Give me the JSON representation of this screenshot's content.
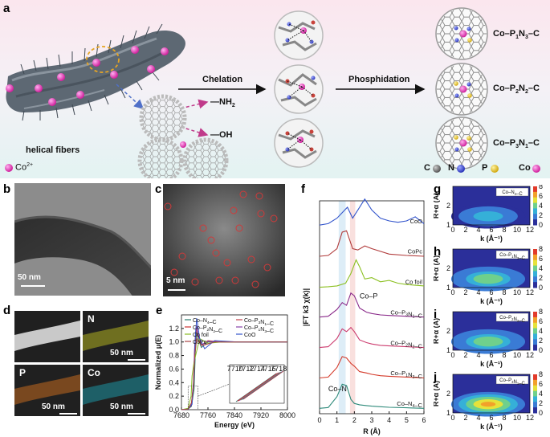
{
  "panel_labels": {
    "a": "a",
    "b": "b",
    "c": "c",
    "d": "d",
    "e": "e",
    "f": "f",
    "g": "g",
    "h": "h",
    "i": "i",
    "j": "j"
  },
  "panel_a": {
    "helical_fibers": "helical fibers",
    "co_legend": "Co",
    "co_charge": "2+",
    "chelation": "Chelation",
    "phosphidation": "Phosphidation",
    "nh2": "—NH",
    "nh2_sub": "2",
    "oh": "—OH",
    "products": [
      {
        "pre": "Co–P",
        "s1": "1",
        "mid": "N",
        "s2": "3",
        "post": "–C"
      },
      {
        "pre": "Co–P",
        "s1": "2",
        "mid": "N",
        "s2": "2",
        "post": "–C"
      },
      {
        "pre": "Co–P",
        "s1": "3",
        "mid": "N",
        "s2": "1",
        "post": "–C"
      }
    ],
    "element_legend": {
      "C": "C",
      "N": "N",
      "P": "P",
      "Co": "Co"
    },
    "colors": {
      "co": "#e23bc8",
      "n": "#3b4fd6",
      "p": "#e8c82a",
      "c": "#777777",
      "o": "#c8433b"
    }
  },
  "panel_b": {
    "scale": "50 nm"
  },
  "panel_c": {
    "scale": "5 nm"
  },
  "panel_d": {
    "tiles": [
      {
        "label": "",
        "scale": ""
      },
      {
        "label": "N",
        "scale": "50 nm"
      },
      {
        "label": "P",
        "scale": "50 nm"
      },
      {
        "label": "Co",
        "scale": "50 nm"
      }
    ]
  },
  "panel_e": {
    "ylabel": "Normalized μ(E)",
    "xlabel": "Energy (eV)",
    "legend": [
      {
        "text": "Co–N4–C",
        "color": "#2a7a6a"
      },
      {
        "text": "Co–P3N1–C",
        "color": "#c0404a"
      },
      {
        "text": "Co–P2N2–C",
        "color": "#cc3333"
      },
      {
        "text": "Co–P1N3–C",
        "color": "#8844aa"
      },
      {
        "text": "Co foil",
        "color": "#88bb22"
      },
      {
        "text": "CoO",
        "color": "#3355cc"
      },
      {
        "text": "CoPc",
        "color": "#aa4444"
      }
    ]
  },
  "panel_f": {
    "ylabel": "|FT k3 χ(k)|",
    "xlabel": "R (Å)",
    "annotations": {
      "cop": "Co–P",
      "con": "Co–N"
    },
    "curves": [
      {
        "name": "CoO",
        "color": "#3355cc"
      },
      {
        "name": "CoPc",
        "color": "#b03a3a"
      },
      {
        "name": "Co foil",
        "color": "#8cc022"
      },
      {
        "name": "Co–P3N1–C",
        "color": "#8a2a8a"
      },
      {
        "name": "Co–P2N2–C",
        "color": "#cc3b6e"
      },
      {
        "name": "Co–P1N3–C",
        "color": "#d43a2a"
      },
      {
        "name": "Co–N4–C",
        "color": "#2e8a7a"
      }
    ]
  },
  "wavelet": {
    "ylabel": "R+α (Å)",
    "xlabel": "k (Å⁻¹)",
    "maps": [
      {
        "id": "g",
        "title": "Co–N4–C",
        "sc": 0.35
      },
      {
        "id": "h",
        "title": "Co–P1N3–C",
        "sc": 0.55
      },
      {
        "id": "i",
        "title": "Co–P2N2–C",
        "sc": 0.55
      },
      {
        "id": "j",
        "title": "Co–P3N1–C",
        "sc": 0.9
      }
    ]
  },
  "chart_data": [
    {
      "type": "line",
      "panel": "e",
      "xlabel": "Energy (eV)",
      "ylabel": "Normalized μ(E)",
      "xlim": [
        7680,
        8000
      ],
      "ylim": [
        0,
        1.4
      ],
      "x_ticks": [
        7680,
        7760,
        7840,
        7920,
        8000
      ],
      "y_ticks": [
        0.0,
        0.2,
        0.4,
        0.6,
        0.8,
        1.0,
        1.2
      ],
      "inset_x_ticks": [
        7710,
        7712,
        7714,
        7716,
        7718
      ],
      "series": [
        {
          "name": "Co–N4–C",
          "x": [
            7680,
            7700,
            7710,
            7718,
            7722,
            7726,
            7730,
            7740,
            7760,
            7800,
            7850,
            8000
          ],
          "values": [
            0.0,
            0.01,
            0.05,
            0.3,
            0.85,
            1.15,
            1.05,
            0.92,
            1.0,
            1.0,
            1.0,
            1.0
          ]
        },
        {
          "name": "Co–P1N3–C",
          "x": [
            7680,
            7700,
            7710,
            7716,
            7720,
            7725,
            7730,
            7740,
            7760,
            7800,
            7850,
            8000
          ],
          "values": [
            0.0,
            0.01,
            0.06,
            0.35,
            0.9,
            1.2,
            1.1,
            0.95,
            1.02,
            1.0,
            1.0,
            1.0
          ]
        },
        {
          "name": "Co–P2N2–C",
          "x": [
            7680,
            7700,
            7710,
            7716,
            7720,
            7725,
            7730,
            7740,
            7760,
            7800,
            7850,
            8000
          ],
          "values": [
            0.0,
            0.01,
            0.07,
            0.38,
            0.92,
            1.22,
            1.1,
            0.95,
            1.01,
            1.0,
            1.0,
            1.0
          ]
        },
        {
          "name": "Co–P3N1–C",
          "x": [
            7680,
            7700,
            7710,
            7716,
            7720,
            7725,
            7730,
            7740,
            7760,
            7800,
            7850,
            8000
          ],
          "values": [
            0.0,
            0.01,
            0.08,
            0.4,
            0.95,
            1.25,
            1.12,
            0.96,
            1.01,
            1.0,
            1.0,
            1.0
          ]
        },
        {
          "name": "Co foil",
          "x": [
            7680,
            7700,
            7709,
            7712,
            7718,
            7725,
            7735,
            7760,
            7800,
            7850,
            8000
          ],
          "values": [
            0.0,
            0.02,
            0.2,
            0.5,
            0.7,
            0.85,
            1.05,
            0.98,
            1.0,
            1.0,
            1.0
          ]
        },
        {
          "name": "CoO",
          "x": [
            7680,
            7700,
            7712,
            7718,
            7722,
            7726,
            7735,
            7750,
            7780,
            7850,
            8000
          ],
          "values": [
            0.0,
            0.01,
            0.08,
            0.5,
            1.1,
            1.35,
            1.05,
            0.9,
            1.02,
            1.0,
            1.0
          ]
        },
        {
          "name": "CoPc",
          "x": [
            7680,
            7700,
            7710,
            7716,
            7720,
            7726,
            7732,
            7745,
            7780,
            7850,
            8000
          ],
          "values": [
            0.0,
            0.01,
            0.1,
            0.35,
            0.8,
            1.05,
            1.0,
            0.95,
            1.0,
            1.0,
            1.0
          ]
        }
      ]
    },
    {
      "type": "line",
      "panel": "f",
      "xlabel": "R (Å)",
      "ylabel": "|FT k3 χ(k)|",
      "xlim": [
        0,
        6
      ],
      "x_ticks": [
        0,
        1,
        2,
        3,
        4,
        5,
        6
      ],
      "series": [
        {
          "name": "CoO",
          "x": [
            0,
            0.5,
            1.0,
            1.3,
            1.6,
            1.9,
            2.2,
            2.6,
            3.0,
            3.5,
            4.0,
            4.5,
            5.0,
            5.5,
            6.0
          ],
          "values": [
            0.05,
            0.1,
            0.3,
            0.5,
            0.7,
            0.3,
            0.6,
            1.0,
            0.6,
            0.3,
            0.2,
            0.15,
            0.2,
            0.35,
            0.1
          ]
        },
        {
          "name": "CoPc",
          "x": [
            0,
            0.5,
            1.0,
            1.3,
            1.55,
            1.9,
            2.2,
            2.6,
            3.0,
            3.5,
            4.0,
            5.0,
            6.0
          ],
          "values": [
            0.02,
            0.05,
            0.3,
            0.9,
            0.95,
            0.3,
            0.25,
            0.4,
            0.3,
            0.2,
            0.1,
            0.05,
            0.02
          ]
        },
        {
          "name": "Co foil",
          "x": [
            0,
            0.5,
            1.0,
            1.5,
            1.8,
            2.1,
            2.3,
            2.6,
            3.0,
            3.5,
            4.0,
            4.5,
            5.0,
            6.0
          ],
          "values": [
            0.0,
            0.02,
            0.05,
            0.15,
            0.5,
            1.0,
            0.75,
            0.3,
            0.35,
            0.2,
            0.25,
            0.15,
            0.1,
            0.05
          ]
        },
        {
          "name": "Co–P3N1–C",
          "x": [
            0,
            0.5,
            1.0,
            1.3,
            1.55,
            1.8,
            2.0,
            2.3,
            2.7,
            3.0,
            3.5,
            4.0,
            5.0,
            6.0
          ],
          "values": [
            0.02,
            0.05,
            0.3,
            0.55,
            0.45,
            0.9,
            0.8,
            0.35,
            0.2,
            0.15,
            0.1,
            0.08,
            0.05,
            0.02
          ]
        },
        {
          "name": "Co–P2N2–C",
          "x": [
            0,
            0.5,
            1.0,
            1.3,
            1.55,
            1.8,
            2.0,
            2.3,
            2.7,
            3.0,
            3.5,
            4.0,
            5.0,
            6.0
          ],
          "values": [
            0.02,
            0.05,
            0.35,
            0.7,
            0.6,
            0.75,
            0.6,
            0.3,
            0.2,
            0.15,
            0.1,
            0.08,
            0.05,
            0.02
          ]
        },
        {
          "name": "Co–P1N3–C",
          "x": [
            0,
            0.5,
            1.0,
            1.3,
            1.55,
            1.8,
            2.0,
            2.3,
            2.7,
            3.0,
            3.5,
            4.0,
            5.0,
            6.0
          ],
          "values": [
            0.02,
            0.05,
            0.4,
            0.8,
            0.75,
            0.55,
            0.45,
            0.25,
            0.2,
            0.15,
            0.1,
            0.08,
            0.05,
            0.02
          ]
        },
        {
          "name": "Co–N4–C",
          "x": [
            0,
            0.5,
            1.0,
            1.3,
            1.55,
            1.8,
            2.0,
            2.3,
            2.7,
            3.0,
            3.5,
            4.0,
            5.0,
            6.0
          ],
          "values": [
            0.02,
            0.05,
            0.45,
            0.9,
            0.85,
            0.35,
            0.2,
            0.15,
            0.12,
            0.1,
            0.08,
            0.06,
            0.04,
            0.02
          ]
        }
      ]
    },
    {
      "type": "heatmap",
      "panel": "g-j",
      "xlabel": "k (Å⁻¹)",
      "ylabel": "R+α (Å)",
      "xlim": [
        0,
        12
      ],
      "ylim": [
        1,
        3
      ],
      "x_ticks": [
        0,
        2,
        4,
        6,
        8,
        10,
        12
      ],
      "y_ticks": [
        1,
        2
      ],
      "colorbar_ticks": [
        0,
        2,
        4,
        6,
        8
      ],
      "series": [
        {
          "name": "Co–N4–C",
          "values": [
            3.5
          ]
        },
        {
          "name": "Co–P1N3–C",
          "values": [
            5.5
          ]
        },
        {
          "name": "Co–P2N2–C",
          "values": [
            5.5
          ]
        },
        {
          "name": "Co–P3N1–C",
          "values": [
            9.0
          ]
        }
      ]
    }
  ]
}
